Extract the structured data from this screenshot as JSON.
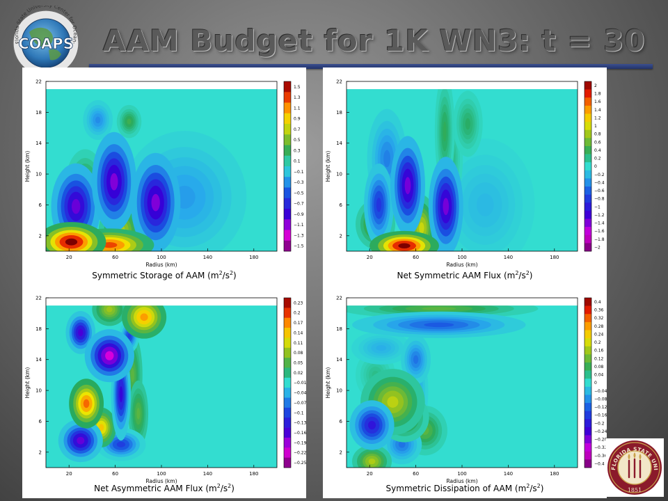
{
  "page": {
    "title": "AAM Budget for 1K WN3:  t = 30",
    "logo": {
      "text": "COAPS",
      "ring_text": "Florida State University  Center for Ocean-Atmospheric Prediction Studies"
    },
    "seal": {
      "ring_text": "FLORIDA STATE UNIVERSITY",
      "year": "1851"
    }
  },
  "colors": {
    "title_bar": "#2b3d7a",
    "background_center": "#9b9b9b",
    "background_edge": "#3a3a3a",
    "field_background": "#33ddd0",
    "seal_red": "#8b1a2b",
    "seal_gold": "#c9a24a"
  },
  "chart_data": [
    {
      "type": "heatmap",
      "title": "Symmetric Storage of AAM (m2/s2)",
      "title_main": "Symmetric Storage of AAM (m",
      "title_unit_mid": "/s",
      "title_unit_end": ")",
      "title_sup": "2",
      "xlabel": "Radius (km)",
      "ylabel": "Height (km)",
      "x_ticks": [
        "20",
        "60",
        "100",
        "140",
        "180"
      ],
      "y_ticks": [
        "2",
        "6",
        "10",
        "14",
        "18",
        "22"
      ],
      "xlim": [
        0,
        200
      ],
      "ylim": [
        0,
        22
      ],
      "colorbar": [
        "1.5",
        "1.3",
        "1.1",
        "0.9",
        "0.7",
        "0.5",
        "0.3",
        "0.1",
        "−0.1",
        "−0.3",
        "−0.5",
        "−0.7",
        "−0.9",
        "−1.1",
        "−1.3",
        "−1.5"
      ],
      "vmin": -1.5,
      "vmax": 1.5,
      "features": [
        {
          "x": 22,
          "y": 1.2,
          "sx": 14,
          "sy": 1.2,
          "v": 1.5
        },
        {
          "x": 55,
          "y": 0.8,
          "sx": 18,
          "sy": 1.0,
          "v": 1.2
        },
        {
          "x": 65,
          "y": 2.8,
          "sx": 9,
          "sy": 1.6,
          "v": 0.6
        },
        {
          "x": 80,
          "y": 4.0,
          "sx": 6,
          "sy": 2.2,
          "v": 0.5
        },
        {
          "x": 34,
          "y": 8.5,
          "sx": 8,
          "sy": 2.2,
          "v": 0.35
        },
        {
          "x": 72,
          "y": 16.8,
          "sx": 5,
          "sy": 1.0,
          "v": 0.3
        },
        {
          "x": 26,
          "y": 5.8,
          "sx": 10,
          "sy": 2.6,
          "v": -0.95
        },
        {
          "x": 59,
          "y": 9.0,
          "sx": 9,
          "sy": 3.0,
          "v": -1.0
        },
        {
          "x": 95,
          "y": 6.3,
          "sx": 10,
          "sy": 3.0,
          "v": -1.0
        },
        {
          "x": 45,
          "y": 17.0,
          "sx": 6,
          "sy": 1.2,
          "v": -0.3
        },
        {
          "x": 120,
          "y": 7.0,
          "sx": 25,
          "sy": 4.0,
          "v": -0.25
        }
      ]
    },
    {
      "type": "heatmap",
      "title": "Net Symmetric AAM Flux (m2/s2)",
      "title_main": "Net Symmetric AAM Flux (m",
      "title_unit_mid": "/s",
      "title_unit_end": ")",
      "title_sup": "2",
      "xlabel": "Radius (km)",
      "ylabel": "Height (km)",
      "x_ticks": [
        "20",
        "60",
        "100",
        "140",
        "180"
      ],
      "y_ticks": [
        "2",
        "6",
        "10",
        "14",
        "18",
        "22"
      ],
      "xlim": [
        0,
        200
      ],
      "ylim": [
        0,
        22
      ],
      "colorbar": [
        "2",
        "1.8",
        "1.6",
        "1.4",
        "1.2",
        "1",
        "0.8",
        "0.6",
        "0.4",
        "0.2",
        "0",
        "−0.2",
        "−0.4",
        "−0.6",
        "−0.8",
        "−1",
        "−1.2",
        "−1.4",
        "−1.6",
        "−1.8",
        "−2"
      ],
      "vmin": -2,
      "vmax": 2,
      "features": [
        {
          "x": 50,
          "y": 0.7,
          "sx": 14,
          "sy": 0.9,
          "v": 2.0
        },
        {
          "x": 65,
          "y": 3.0,
          "sx": 6,
          "sy": 2.0,
          "v": 0.9
        },
        {
          "x": 25,
          "y": 3.5,
          "sx": 8,
          "sy": 1.5,
          "v": 0.7
        },
        {
          "x": 85,
          "y": 15.5,
          "sx": 4,
          "sy": 3.5,
          "v": 0.35
        },
        {
          "x": 105,
          "y": 16.5,
          "sx": 6,
          "sy": 2.0,
          "v": 0.3
        },
        {
          "x": 90,
          "y": 12.0,
          "sx": 5,
          "sy": 2.5,
          "v": 0.25
        },
        {
          "x": 53,
          "y": 8.5,
          "sx": 7,
          "sy": 3.0,
          "v": -1.3
        },
        {
          "x": 86,
          "y": 5.8,
          "sx": 7,
          "sy": 3.0,
          "v": -1.3
        },
        {
          "x": 28,
          "y": 6.0,
          "sx": 6,
          "sy": 2.5,
          "v": -0.8
        },
        {
          "x": 35,
          "y": 12.0,
          "sx": 8,
          "sy": 3.0,
          "v": -0.45
        },
        {
          "x": 120,
          "y": 6.0,
          "sx": 20,
          "sy": 4.0,
          "v": -0.2
        }
      ]
    },
    {
      "type": "heatmap",
      "title": "Net Asymmetric AAM Flux (m2/s2)",
      "title_main": "Net Asymmetric AAM Flux (m",
      "title_unit_mid": "/s",
      "title_unit_end": ")",
      "title_sup": "2",
      "xlabel": "Radius (km)",
      "ylabel": "Height (km)",
      "x_ticks": [
        "20",
        "60",
        "100",
        "140",
        "180"
      ],
      "y_ticks": [
        "2",
        "6",
        "10",
        "14",
        "18",
        "22"
      ],
      "xlim": [
        0,
        200
      ],
      "ylim": [
        0,
        22
      ],
      "colorbar": [
        "0.23",
        "0.2",
        "0.17",
        "0.14",
        "0.11",
        "0.08",
        "0.05",
        "0.02",
        "−0.01",
        "−0.04",
        "−0.07",
        "−0.1",
        "−0.13",
        "−0.16",
        "−0.19",
        "−0.22",
        "−0.25"
      ],
      "vmin": -0.25,
      "vmax": 0.23,
      "features": [
        {
          "x": 35,
          "y": 8.3,
          "sx": 7,
          "sy": 1.5,
          "v": 0.17
        },
        {
          "x": 48,
          "y": 5.2,
          "sx": 6,
          "sy": 1.2,
          "v": 0.13
        },
        {
          "x": 85,
          "y": 19.5,
          "sx": 9,
          "sy": 1.3,
          "v": 0.15
        },
        {
          "x": 55,
          "y": 20.5,
          "sx": 7,
          "sy": 1.0,
          "v": 0.08
        },
        {
          "x": 55,
          "y": 15.5,
          "sx": 10,
          "sy": 1.0,
          "v": 0.05
        },
        {
          "x": 75,
          "y": 12.0,
          "sx": 4,
          "sy": 2.5,
          "v": 0.05
        },
        {
          "x": 80,
          "y": 7.0,
          "sx": 4,
          "sy": 2.0,
          "v": 0.05
        },
        {
          "x": 55,
          "y": 14.5,
          "sx": 10,
          "sy": 1.6,
          "v": -0.2
        },
        {
          "x": 30,
          "y": 17.5,
          "sx": 6,
          "sy": 1.3,
          "v": -0.15
        },
        {
          "x": 65,
          "y": 9.5,
          "sx": 4,
          "sy": 2.8,
          "v": -0.14
        },
        {
          "x": 30,
          "y": 3.5,
          "sx": 9,
          "sy": 1.3,
          "v": -0.16
        },
        {
          "x": 65,
          "y": 3.0,
          "sx": 10,
          "sy": 1.0,
          "v": -0.1
        },
        {
          "x": 72,
          "y": 17.0,
          "sx": 4,
          "sy": 1.0,
          "v": -0.1
        }
      ]
    },
    {
      "type": "heatmap",
      "title": "Symmetric Dissipation of AAM (m2/s2)",
      "title_main": "Symmetric Dissipation of AAM (m",
      "title_unit_mid": "/s",
      "title_unit_end": ")",
      "title_sup": "2",
      "xlabel": "Radius (km)",
      "ylabel": "Height (km)",
      "x_ticks": [
        "20",
        "60",
        "100",
        "140",
        "180"
      ],
      "y_ticks": [
        "2",
        "6",
        "10",
        "14",
        "18",
        "22"
      ],
      "xlim": [
        0,
        200
      ],
      "ylim": [
        0,
        22
      ],
      "colorbar": [
        "0.4",
        "0.36",
        "0.32",
        "0.28",
        "0.24",
        "0.2",
        "0.16",
        "0.12",
        "0.08",
        "0.04",
        "0",
        "−0.04",
        "−0.08",
        "−0.12",
        "−0.16",
        "−0.2",
        "−0.24",
        "−0.28",
        "−0.32",
        "−0.36",
        "−0.4"
      ],
      "vmin": -0.4,
      "vmax": 0.4,
      "features": [
        {
          "x": 40,
          "y": 8.5,
          "sx": 13,
          "sy": 2.0,
          "v": 0.17
        },
        {
          "x": 50,
          "y": 6.5,
          "sx": 10,
          "sy": 1.5,
          "v": 0.12
        },
        {
          "x": 68,
          "y": 4.8,
          "sx": 9,
          "sy": 1.5,
          "v": 0.1
        },
        {
          "x": 22,
          "y": 0.8,
          "sx": 8,
          "sy": 1.0,
          "v": 0.16
        },
        {
          "x": 80,
          "y": 20.6,
          "sx": 40,
          "sy": 0.6,
          "v": 0.1
        },
        {
          "x": 25,
          "y": 12.0,
          "sx": 8,
          "sy": 1.5,
          "v": 0.04
        },
        {
          "x": 22,
          "y": 5.5,
          "sx": 9,
          "sy": 1.5,
          "v": -0.2
        },
        {
          "x": 48,
          "y": 3.0,
          "sx": 8,
          "sy": 1.2,
          "v": -0.1
        },
        {
          "x": 80,
          "y": 18.5,
          "sx": 35,
          "sy": 0.8,
          "v": -0.12
        },
        {
          "x": 60,
          "y": 14.0,
          "sx": 6,
          "sy": 1.5,
          "v": -0.1
        },
        {
          "x": 60,
          "y": 10.0,
          "sx": 5,
          "sy": 2.5,
          "v": -0.07
        },
        {
          "x": 30,
          "y": 15.5,
          "sx": 12,
          "sy": 1.0,
          "v": -0.05
        }
      ]
    }
  ]
}
